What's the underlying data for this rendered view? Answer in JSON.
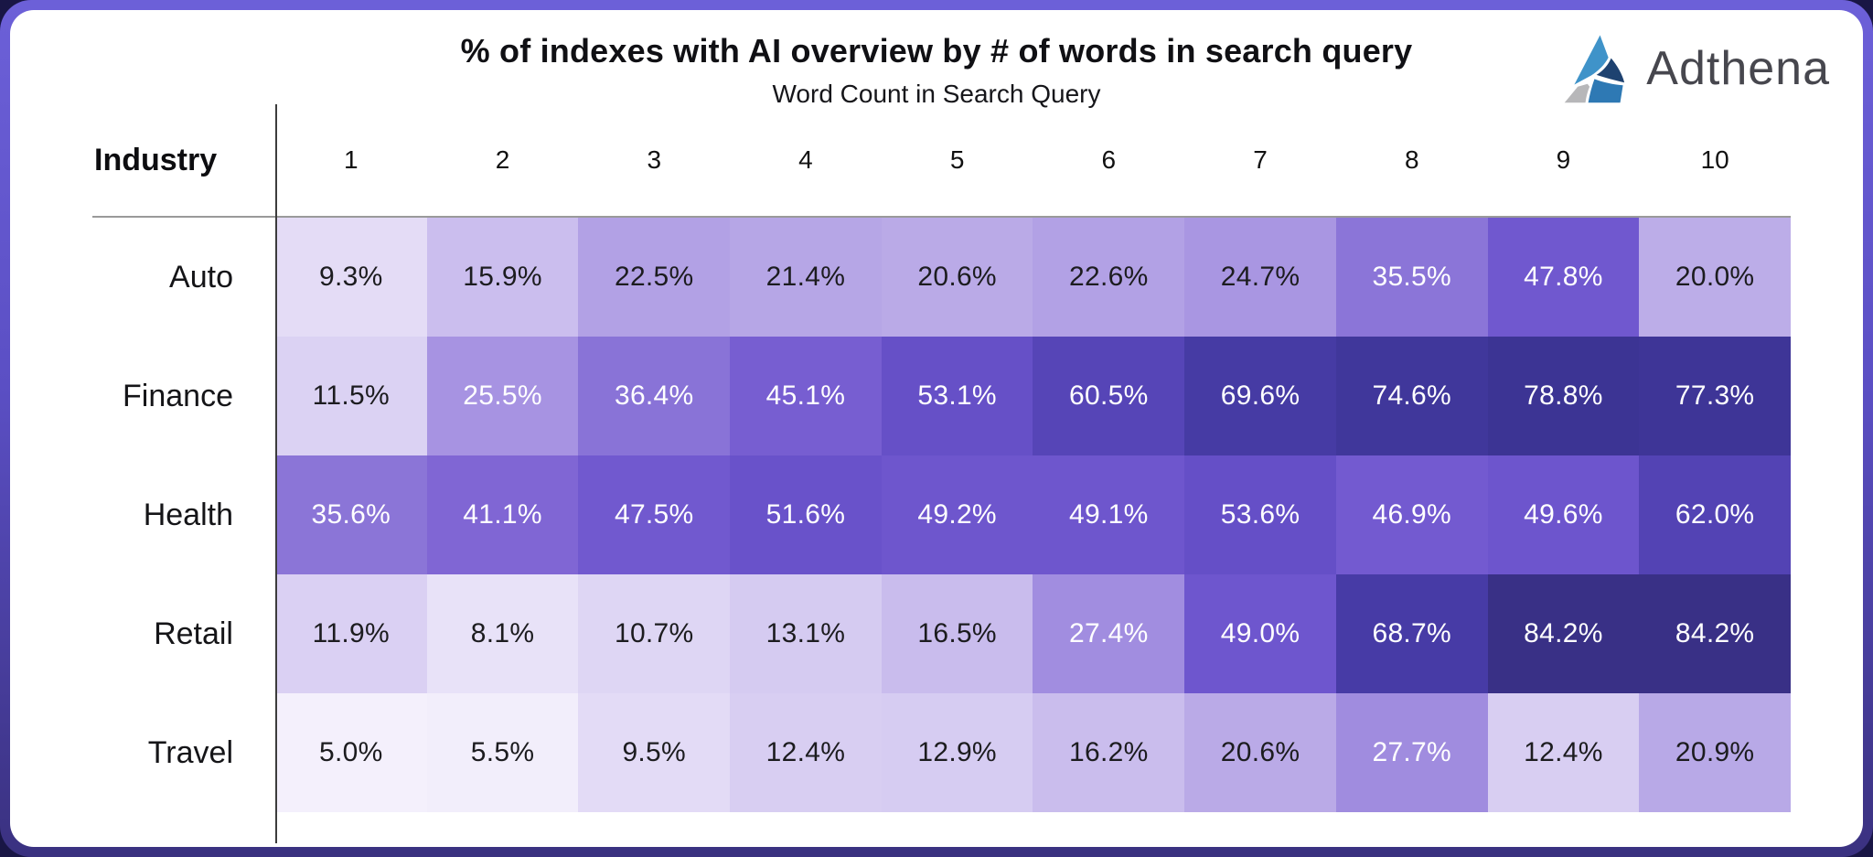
{
  "brand": {
    "name": "Adthena"
  },
  "chart_data": {
    "type": "heatmap",
    "title": "% of indexes with AI overview by # of words in search query",
    "xlabel": "Word Count in Search Query",
    "row_header": "Industry",
    "columns": [
      "1",
      "2",
      "3",
      "4",
      "5",
      "6",
      "7",
      "8",
      "9",
      "10"
    ],
    "rows": [
      {
        "industry": "Auto",
        "values": [
          9.3,
          15.9,
          22.5,
          21.4,
          20.6,
          22.6,
          24.7,
          35.5,
          47.8,
          20.0
        ]
      },
      {
        "industry": "Finance",
        "values": [
          11.5,
          25.5,
          36.4,
          45.1,
          53.1,
          60.5,
          69.6,
          74.6,
          78.8,
          77.3
        ]
      },
      {
        "industry": "Health",
        "values": [
          35.6,
          41.1,
          47.5,
          51.6,
          49.2,
          49.1,
          53.6,
          46.9,
          49.6,
          62.0
        ]
      },
      {
        "industry": "Retail",
        "values": [
          11.9,
          8.1,
          10.7,
          13.1,
          16.5,
          27.4,
          49.0,
          68.7,
          84.2,
          84.2
        ]
      },
      {
        "industry": "Travel",
        "values": [
          5.0,
          5.5,
          9.5,
          12.4,
          12.9,
          16.2,
          20.6,
          27.7,
          12.4,
          20.9
        ]
      }
    ],
    "value_suffix": "%",
    "value_decimals": 1,
    "legend_position": "none",
    "grid": false,
    "color_scale": {
      "stops": [
        [
          5,
          "#f4f0fc"
        ],
        [
          10,
          "#e1d9f5"
        ],
        [
          15,
          "#cec2ef"
        ],
        [
          20,
          "#bcade8"
        ],
        [
          25,
          "#a895e2"
        ],
        [
          31,
          "#9781dc"
        ],
        [
          36,
          "#8a74d7"
        ],
        [
          42,
          "#7e64d3"
        ],
        [
          48,
          "#7058cf"
        ],
        [
          54,
          "#644ec6"
        ],
        [
          60,
          "#5746b8"
        ],
        [
          66,
          "#4a3dab"
        ],
        [
          72,
          "#43399f"
        ],
        [
          78,
          "#3d3496"
        ],
        [
          85,
          "#383084"
        ]
      ],
      "white_text_threshold": 25,
      "dark_text_color": "#1c1c1f",
      "light_text_color": "#ffffff"
    }
  },
  "colors": {
    "frame_border_top": "#6c60d8",
    "frame_border_bottom": "#3a3180",
    "outer_background": "#191645",
    "card_background": "#ffffff",
    "axis_vertical_line": "#3c3c3c",
    "header_rule": "#9a9a9a",
    "logo_light_blue": "#3f93c9",
    "logo_dark_navy": "#1e4270",
    "logo_mid_blue": "#2e79b4",
    "logo_gray": "#b7b7b9",
    "logo_text_color": "#47474e"
  }
}
